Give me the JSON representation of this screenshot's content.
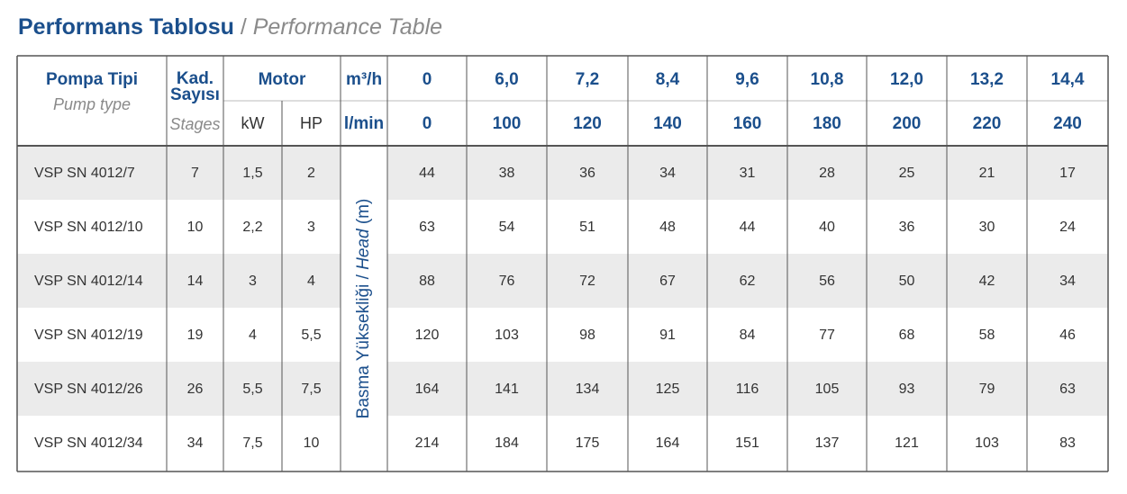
{
  "title": {
    "tr": "Performans Tablosu",
    "separator": "/",
    "en": "Performance Table"
  },
  "table": {
    "header": {
      "pump": {
        "tr": "Pompa Tipi",
        "en": "Pump type"
      },
      "stages": {
        "tr_line1": "Kad.",
        "tr_line2": "Sayısı",
        "en": "Stages"
      },
      "motor": {
        "label": "Motor",
        "kw": "kW",
        "hp": "HP"
      },
      "flow_units": [
        "m³/h",
        "l/min"
      ],
      "flow_m3h": [
        "0",
        "6,0",
        "7,2",
        "8,4",
        "9,6",
        "10,8",
        "12,0",
        "13,2",
        "14,4"
      ],
      "flow_lmin": [
        "0",
        "100",
        "120",
        "140",
        "160",
        "180",
        "200",
        "220",
        "240"
      ]
    },
    "head_label": {
      "tr": "Basma Yüksekliği /",
      "en": "Head",
      "unit": "(m)"
    },
    "rows": [
      {
        "model": "VSP SN 4012/7",
        "stages": "7",
        "kw": "1,5",
        "hp": "2",
        "heads": [
          "44",
          "38",
          "36",
          "34",
          "31",
          "28",
          "25",
          "21",
          "17"
        ]
      },
      {
        "model": "VSP SN 4012/10",
        "stages": "10",
        "kw": "2,2",
        "hp": "3",
        "heads": [
          "63",
          "54",
          "51",
          "48",
          "44",
          "40",
          "36",
          "30",
          "24"
        ]
      },
      {
        "model": "VSP SN 4012/14",
        "stages": "14",
        "kw": "3",
        "hp": "4",
        "heads": [
          "88",
          "76",
          "72",
          "67",
          "62",
          "56",
          "50",
          "42",
          "34"
        ]
      },
      {
        "model": "VSP SN 4012/19",
        "stages": "19",
        "kw": "4",
        "hp": "5,5",
        "heads": [
          "120",
          "103",
          "98",
          "91",
          "84",
          "77",
          "68",
          "58",
          "46"
        ]
      },
      {
        "model": "VSP SN 4012/26",
        "stages": "26",
        "kw": "5,5",
        "hp": "7,5",
        "heads": [
          "164",
          "141",
          "134",
          "125",
          "116",
          "105",
          "93",
          "79",
          "63"
        ]
      },
      {
        "model": "VSP SN 4012/34",
        "stages": "34",
        "kw": "7,5",
        "hp": "10",
        "heads": [
          "214",
          "184",
          "175",
          "164",
          "151",
          "137",
          "121",
          "103",
          "83"
        ]
      }
    ]
  }
}
